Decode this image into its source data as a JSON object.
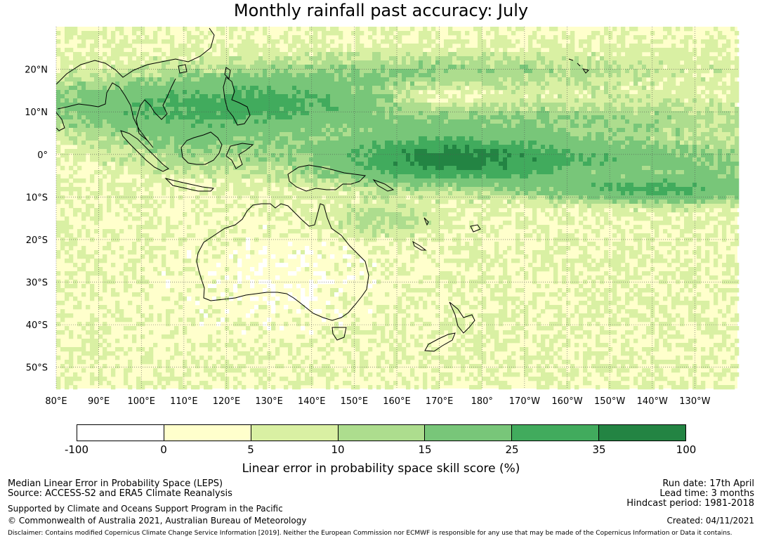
{
  "title": "Monthly rainfall past accuracy: July",
  "map": {
    "lat_labels": [
      "20°N",
      "10°N",
      "0°",
      "10°S",
      "20°S",
      "30°S",
      "40°S",
      "50°S"
    ],
    "lon_labels": [
      "80°E",
      "90°E",
      "100°E",
      "110°E",
      "120°E",
      "130°E",
      "140°E",
      "150°E",
      "160°E",
      "170°E",
      "180°",
      "170°W",
      "160°W",
      "150°W",
      "140°W",
      "130°W"
    ],
    "lat_values": [
      20,
      10,
      0,
      -10,
      -20,
      -30,
      -40,
      -50
    ],
    "lon_values": [
      80,
      90,
      100,
      110,
      120,
      130,
      140,
      150,
      160,
      170,
      180,
      190,
      200,
      210,
      220,
      230
    ],
    "extent": {
      "lon_min": 80,
      "lon_max": 240,
      "lat_min": -55,
      "lat_max": 30
    }
  },
  "colorbar": {
    "ticks": [
      "-100",
      "0",
      "5",
      "10",
      "15",
      "25",
      "35",
      "100"
    ],
    "colors": [
      "#ffffff",
      "#ffffcc",
      "#d9f0a3",
      "#addd8e",
      "#78c679",
      "#41ab5d",
      "#238443"
    ],
    "label": "Linear error in probability space skill score (%)"
  },
  "footer": {
    "line1": "Median Linear Error in Probability Space (LEPS)",
    "line2": "Source: ACCESS-S2 and ERA5 Climate Reanalysis",
    "line3": "Supported by Climate and Oceans Support Program in the Pacific",
    "line4": "© Commonwealth of Australia 2021, Australian Bureau of Meteorology",
    "run_date": "Run date: 17th April",
    "lead_time": "Lead time: 3 months",
    "hindcast": "Hindcast period: 1981-2018",
    "created": "Created: 04/11/2021",
    "disclaimer": "Disclaimer: Contains modified Copernicus Climate Change Service Information [2019]. Neither the European Commission nor ECMWF is responsible for any use that may be made of the Copernicus Information or Data it contains."
  }
}
